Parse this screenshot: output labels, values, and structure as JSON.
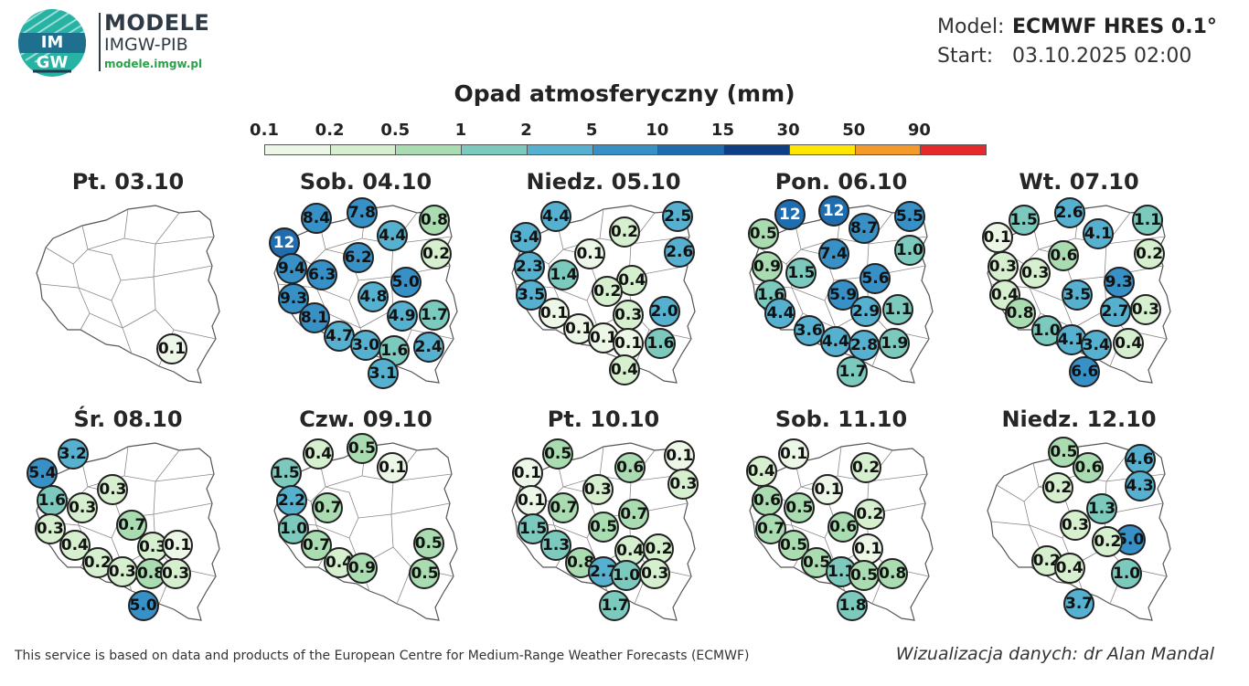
{
  "header": {
    "logo_text_top": "IM",
    "logo_text_bottom": "GW",
    "brand_title": "MODELE",
    "brand_subtitle": "IMGW-PIB",
    "brand_url": "modele.imgw.pl",
    "model_label": "Model:",
    "model_value": "ECMWF HRES 0.1°",
    "start_label": "Start:",
    "start_value": "03.10.2025 02:00"
  },
  "title": "Opad atmosferyczny (mm)",
  "scale": {
    "ticks": [
      "0.1",
      "0.2",
      "0.5",
      "1",
      "2",
      "5",
      "10",
      "15",
      "30",
      "50",
      "90"
    ],
    "colors": [
      "#edf7e8",
      "#d6efcf",
      "#a9dcb0",
      "#7cc9bd",
      "#55b1cf",
      "#3790c6",
      "#1f6cae",
      "#0e3e85",
      "#ffe600",
      "#f39a2a",
      "#e42a2a"
    ]
  },
  "panels": [
    {
      "title": "Pt. 03.10",
      "values": [
        {
          "v": "0.1",
          "nx": 0.73,
          "ny": 0.81
        }
      ]
    },
    {
      "title": "Sob. 04.10",
      "values": [
        {
          "v": "12",
          "nx": 0.07,
          "ny": 0.22
        },
        {
          "v": "8.4",
          "nx": 0.24,
          "ny": 0.08
        },
        {
          "v": "7.8",
          "nx": 0.48,
          "ny": 0.05
        },
        {
          "v": "0.8",
          "nx": 0.86,
          "ny": 0.09
        },
        {
          "v": "4.4",
          "nx": 0.64,
          "ny": 0.18
        },
        {
          "v": "0.2",
          "nx": 0.87,
          "ny": 0.28
        },
        {
          "v": "6.2",
          "nx": 0.46,
          "ny": 0.3
        },
        {
          "v": "9.4",
          "nx": 0.11,
          "ny": 0.36
        },
        {
          "v": "6.3",
          "nx": 0.27,
          "ny": 0.4
        },
        {
          "v": "5.0",
          "nx": 0.71,
          "ny": 0.44
        },
        {
          "v": "9.3",
          "nx": 0.12,
          "ny": 0.53
        },
        {
          "v": "4.8",
          "nx": 0.54,
          "ny": 0.52
        },
        {
          "v": "8.1",
          "nx": 0.23,
          "ny": 0.64
        },
        {
          "v": "4.9",
          "nx": 0.69,
          "ny": 0.63
        },
        {
          "v": "1.7",
          "nx": 0.86,
          "ny": 0.62
        },
        {
          "v": "4.7",
          "nx": 0.36,
          "ny": 0.74
        },
        {
          "v": "3.0",
          "nx": 0.5,
          "ny": 0.79
        },
        {
          "v": "1.6",
          "nx": 0.65,
          "ny": 0.82
        },
        {
          "v": "2.4",
          "nx": 0.83,
          "ny": 0.8
        },
        {
          "v": "3.1",
          "nx": 0.59,
          "ny": 0.95
        }
      ]
    },
    {
      "title": "Niedz. 05.10",
      "values": [
        {
          "v": "4.4",
          "nx": 0.25,
          "ny": 0.07
        },
        {
          "v": "2.5",
          "nx": 0.89,
          "ny": 0.07
        },
        {
          "v": "3.4",
          "nx": 0.09,
          "ny": 0.19
        },
        {
          "v": "0.2",
          "nx": 0.61,
          "ny": 0.16
        },
        {
          "v": "2.6",
          "nx": 0.9,
          "ny": 0.27
        },
        {
          "v": "0.1",
          "nx": 0.43,
          "ny": 0.28
        },
        {
          "v": "2.3",
          "nx": 0.11,
          "ny": 0.35
        },
        {
          "v": "1.4",
          "nx": 0.29,
          "ny": 0.4
        },
        {
          "v": "0.4",
          "nx": 0.65,
          "ny": 0.43
        },
        {
          "v": "0.2",
          "nx": 0.52,
          "ny": 0.49
        },
        {
          "v": "3.5",
          "nx": 0.12,
          "ny": 0.51
        },
        {
          "v": "0.1",
          "nx": 0.24,
          "ny": 0.61
        },
        {
          "v": "2.0",
          "nx": 0.82,
          "ny": 0.6
        },
        {
          "v": "0.3",
          "nx": 0.63,
          "ny": 0.62
        },
        {
          "v": "0.1",
          "nx": 0.37,
          "ny": 0.7
        },
        {
          "v": "0.1",
          "nx": 0.5,
          "ny": 0.75
        },
        {
          "v": "0.1",
          "nx": 0.63,
          "ny": 0.78
        },
        {
          "v": "1.6",
          "nx": 0.8,
          "ny": 0.78
        },
        {
          "v": "0.4",
          "nx": 0.61,
          "ny": 0.93
        }
      ]
    },
    {
      "title": "Pon. 06.10",
      "values": [
        {
          "v": "12",
          "nx": 0.23,
          "ny": 0.06
        },
        {
          "v": "12",
          "nx": 0.46,
          "ny": 0.04
        },
        {
          "v": "5.5",
          "nx": 0.86,
          "ny": 0.07
        },
        {
          "v": "0.5",
          "nx": 0.09,
          "ny": 0.17
        },
        {
          "v": "8.7",
          "nx": 0.62,
          "ny": 0.14
        },
        {
          "v": "1.0",
          "nx": 0.86,
          "ny": 0.26
        },
        {
          "v": "7.4",
          "nx": 0.46,
          "ny": 0.28
        },
        {
          "v": "0.9",
          "nx": 0.11,
          "ny": 0.35
        },
        {
          "v": "1.5",
          "nx": 0.29,
          "ny": 0.39
        },
        {
          "v": "5.6",
          "nx": 0.68,
          "ny": 0.42
        },
        {
          "v": "1.6",
          "nx": 0.13,
          "ny": 0.51
        },
        {
          "v": "5.9",
          "nx": 0.51,
          "ny": 0.51
        },
        {
          "v": "2.9",
          "nx": 0.63,
          "ny": 0.6
        },
        {
          "v": "1.1",
          "nx": 0.8,
          "ny": 0.59
        },
        {
          "v": "4.4",
          "nx": 0.18,
          "ny": 0.61
        },
        {
          "v": "3.6",
          "nx": 0.33,
          "ny": 0.71
        },
        {
          "v": "4.4",
          "nx": 0.47,
          "ny": 0.77
        },
        {
          "v": "2.8",
          "nx": 0.62,
          "ny": 0.79
        },
        {
          "v": "1.9",
          "nx": 0.78,
          "ny": 0.78
        },
        {
          "v": "1.7",
          "nx": 0.56,
          "ny": 0.94
        }
      ]
    },
    {
      "title": "Wt. 07.10",
      "values": [
        {
          "v": "1.5",
          "nx": 0.21,
          "ny": 0.09
        },
        {
          "v": "2.6",
          "nx": 0.45,
          "ny": 0.05
        },
        {
          "v": "1.1",
          "nx": 0.86,
          "ny": 0.09
        },
        {
          "v": "0.1",
          "nx": 0.07,
          "ny": 0.19
        },
        {
          "v": "4.1",
          "nx": 0.6,
          "ny": 0.17
        },
        {
          "v": "0.2",
          "nx": 0.87,
          "ny": 0.28
        },
        {
          "v": "0.6",
          "nx": 0.42,
          "ny": 0.29
        },
        {
          "v": "0.3",
          "nx": 0.1,
          "ny": 0.35
        },
        {
          "v": "0.3",
          "nx": 0.27,
          "ny": 0.39
        },
        {
          "v": "9.3",
          "nx": 0.71,
          "ny": 0.44
        },
        {
          "v": "0.4",
          "nx": 0.11,
          "ny": 0.51
        },
        {
          "v": "3.5",
          "nx": 0.49,
          "ny": 0.51
        },
        {
          "v": "0.8",
          "nx": 0.19,
          "ny": 0.61
        },
        {
          "v": "2.7",
          "nx": 0.69,
          "ny": 0.6
        },
        {
          "v": "0.3",
          "nx": 0.85,
          "ny": 0.59
        },
        {
          "v": "1.0",
          "nx": 0.33,
          "ny": 0.71
        },
        {
          "v": "4.1",
          "nx": 0.46,
          "ny": 0.76
        },
        {
          "v": "3.4",
          "nx": 0.59,
          "ny": 0.79
        },
        {
          "v": "0.4",
          "nx": 0.76,
          "ny": 0.78
        },
        {
          "v": "6.6",
          "nx": 0.53,
          "ny": 0.94
        }
      ]
    },
    {
      "title": "Śr. 08.10",
      "values": [
        {
          "v": "3.2",
          "nx": 0.21,
          "ny": 0.07
        },
        {
          "v": "5.4",
          "nx": 0.05,
          "ny": 0.18
        },
        {
          "v": "0.3",
          "nx": 0.42,
          "ny": 0.27
        },
        {
          "v": "1.6",
          "nx": 0.1,
          "ny": 0.33
        },
        {
          "v": "0.3",
          "nx": 0.26,
          "ny": 0.37
        },
        {
          "v": "0.7",
          "nx": 0.52,
          "ny": 0.47
        },
        {
          "v": "0.3",
          "nx": 0.09,
          "ny": 0.49
        },
        {
          "v": "0.4",
          "nx": 0.22,
          "ny": 0.58
        },
        {
          "v": "0.3",
          "nx": 0.63,
          "ny": 0.59
        },
        {
          "v": "0.1",
          "nx": 0.76,
          "ny": 0.58
        },
        {
          "v": "0.2",
          "nx": 0.34,
          "ny": 0.68
        },
        {
          "v": "0.3",
          "nx": 0.47,
          "ny": 0.73
        },
        {
          "v": "0.8",
          "nx": 0.62,
          "ny": 0.74
        },
        {
          "v": "0.3",
          "nx": 0.75,
          "ny": 0.74
        },
        {
          "v": "5.0",
          "nx": 0.58,
          "ny": 0.92
        }
      ]
    },
    {
      "title": "Czw. 09.10",
      "values": [
        {
          "v": "0.4",
          "nx": 0.25,
          "ny": 0.07
        },
        {
          "v": "0.5",
          "nx": 0.48,
          "ny": 0.04
        },
        {
          "v": "1.5",
          "nx": 0.08,
          "ny": 0.18
        },
        {
          "v": "0.1",
          "nx": 0.64,
          "ny": 0.15
        },
        {
          "v": "2.2",
          "nx": 0.11,
          "ny": 0.33
        },
        {
          "v": "0.7",
          "nx": 0.3,
          "ny": 0.37
        },
        {
          "v": "1.0",
          "nx": 0.12,
          "ny": 0.49
        },
        {
          "v": "0.7",
          "nx": 0.24,
          "ny": 0.58
        },
        {
          "v": "0.5",
          "nx": 0.83,
          "ny": 0.57
        },
        {
          "v": "0.4",
          "nx": 0.36,
          "ny": 0.68
        },
        {
          "v": "0.9",
          "nx": 0.48,
          "ny": 0.71
        },
        {
          "v": "0.5",
          "nx": 0.81,
          "ny": 0.74
        }
      ]
    },
    {
      "title": "Pt. 10.10",
      "values": [
        {
          "v": "0.5",
          "nx": 0.26,
          "ny": 0.07
        },
        {
          "v": "0.1",
          "nx": 0.9,
          "ny": 0.08
        },
        {
          "v": "0.1",
          "nx": 0.1,
          "ny": 0.18
        },
        {
          "v": "0.6",
          "nx": 0.64,
          "ny": 0.15
        },
        {
          "v": "0.3",
          "nx": 0.92,
          "ny": 0.24
        },
        {
          "v": "0.3",
          "nx": 0.47,
          "ny": 0.27
        },
        {
          "v": "0.1",
          "nx": 0.12,
          "ny": 0.33
        },
        {
          "v": "0.7",
          "nx": 0.29,
          "ny": 0.37
        },
        {
          "v": "0.7",
          "nx": 0.66,
          "ny": 0.41
        },
        {
          "v": "1.5",
          "nx": 0.13,
          "ny": 0.49
        },
        {
          "v": "0.5",
          "nx": 0.5,
          "ny": 0.48
        },
        {
          "v": "1.3",
          "nx": 0.25,
          "ny": 0.58
        },
        {
          "v": "0.4",
          "nx": 0.64,
          "ny": 0.61
        },
        {
          "v": "0.2",
          "nx": 0.79,
          "ny": 0.6
        },
        {
          "v": "0.8",
          "nx": 0.38,
          "ny": 0.68
        },
        {
          "v": "2.7",
          "nx": 0.5,
          "ny": 0.73
        },
        {
          "v": "1.0",
          "nx": 0.62,
          "ny": 0.75
        },
        {
          "v": "0.3",
          "nx": 0.77,
          "ny": 0.74
        },
        {
          "v": "1.7",
          "nx": 0.56,
          "ny": 0.92
        }
      ]
    },
    {
      "title": "Sob. 11.10",
      "values": [
        {
          "v": "0.1",
          "nx": 0.25,
          "ny": 0.07
        },
        {
          "v": "0.4",
          "nx": 0.08,
          "ny": 0.17
        },
        {
          "v": "0.2",
          "nx": 0.63,
          "ny": 0.15
        },
        {
          "v": "0.1",
          "nx": 0.43,
          "ny": 0.27
        },
        {
          "v": "0.6",
          "nx": 0.11,
          "ny": 0.33
        },
        {
          "v": "0.5",
          "nx": 0.28,
          "ny": 0.37
        },
        {
          "v": "0.2",
          "nx": 0.65,
          "ny": 0.41
        },
        {
          "v": "0.7",
          "nx": 0.13,
          "ny": 0.49
        },
        {
          "v": "0.6",
          "nx": 0.51,
          "ny": 0.48
        },
        {
          "v": "0.5",
          "nx": 0.25,
          "ny": 0.58
        },
        {
          "v": "0.1",
          "nx": 0.64,
          "ny": 0.6
        },
        {
          "v": "0.5",
          "nx": 0.37,
          "ny": 0.68
        },
        {
          "v": "1.1",
          "nx": 0.5,
          "ny": 0.73
        },
        {
          "v": "0.5",
          "nx": 0.62,
          "ny": 0.75
        },
        {
          "v": "0.8",
          "nx": 0.77,
          "ny": 0.74
        },
        {
          "v": "1.8",
          "nx": 0.56,
          "ny": 0.92
        }
      ]
    },
    {
      "title": "Niedz. 12.10",
      "values": [
        {
          "v": "0.5",
          "nx": 0.42,
          "ny": 0.06
        },
        {
          "v": "4.6",
          "nx": 0.82,
          "ny": 0.1
        },
        {
          "v": "0.6",
          "nx": 0.55,
          "ny": 0.15
        },
        {
          "v": "4.3",
          "nx": 0.82,
          "ny": 0.25
        },
        {
          "v": "0.2",
          "nx": 0.39,
          "ny": 0.26
        },
        {
          "v": "1.3",
          "nx": 0.62,
          "ny": 0.38
        },
        {
          "v": "0.3",
          "nx": 0.48,
          "ny": 0.47
        },
        {
          "v": "5.0",
          "nx": 0.77,
          "ny": 0.55
        },
        {
          "v": "0.2",
          "nx": 0.65,
          "ny": 0.56
        },
        {
          "v": "0.2",
          "nx": 0.33,
          "ny": 0.67
        },
        {
          "v": "0.4",
          "nx": 0.45,
          "ny": 0.71
        },
        {
          "v": "1.0",
          "nx": 0.75,
          "ny": 0.74
        },
        {
          "v": "3.7",
          "nx": 0.5,
          "ny": 0.91
        }
      ]
    }
  ],
  "footer": {
    "credit_left": "This service is based on data and products of the European Centre for Medium-Range Weather Forecasts (ECMWF)",
    "credit_right": "Wizualizacja danych: dr Alan Mandal"
  }
}
